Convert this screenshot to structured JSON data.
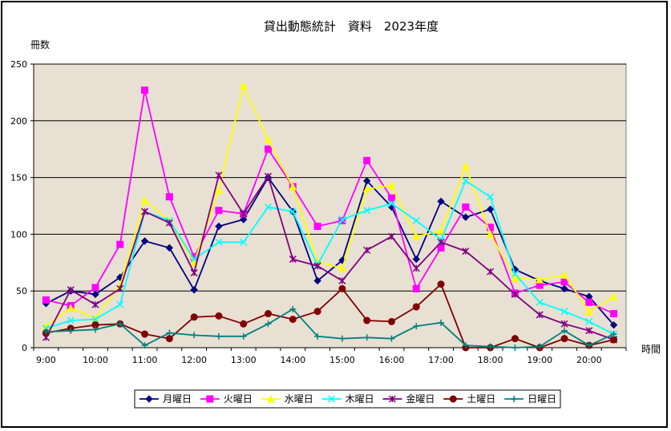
{
  "chart_data": {
    "type": "line",
    "title": "貸出動態統計　資料　2023年度",
    "ylabel": "冊数",
    "xlabel": "時間",
    "ylim": [
      0,
      250
    ],
    "yticks": [
      0,
      50,
      100,
      150,
      200,
      250
    ],
    "x_tick_labels": [
      "9:00",
      "10:00",
      "11:00",
      "12:00",
      "13:00",
      "14:00",
      "15:00",
      "16:00",
      "17:00",
      "18:00",
      "19:00",
      "20:00"
    ],
    "x": [
      "9:00",
      "9:30",
      "10:00",
      "10:30",
      "11:00",
      "11:30",
      "12:00",
      "12:30",
      "13:00",
      "13:30",
      "14:00",
      "14:30",
      "15:00",
      "15:30",
      "16:00",
      "16:30",
      "17:00",
      "17:30",
      "18:00",
      "18:30",
      "19:00",
      "19:30",
      "20:00",
      "20:30"
    ],
    "grid": true,
    "legend_position": "bottom",
    "plot_background": "#e8e0d2",
    "series": [
      {
        "name": "月曜日",
        "color": "#000080",
        "marker": "diamond",
        "values": [
          39,
          50,
          47,
          62,
          94,
          88,
          51,
          107,
          113,
          150,
          120,
          59,
          77,
          147,
          124,
          78,
          129,
          115,
          122,
          69,
          59,
          52,
          45,
          20
        ]
      },
      {
        "name": "火曜日",
        "color": "#ff00ff",
        "marker": "square",
        "values": [
          42,
          37,
          53,
          91,
          227,
          133,
          80,
          121,
          118,
          175,
          142,
          107,
          112,
          165,
          132,
          52,
          88,
          124,
          106,
          48,
          55,
          58,
          40,
          30
        ]
      },
      {
        "name": "水曜日",
        "color": "#ffff00",
        "marker": "triangle",
        "values": [
          19,
          35,
          26,
          55,
          130,
          112,
          75,
          139,
          231,
          183,
          142,
          76,
          70,
          140,
          143,
          98,
          103,
          160,
          100,
          61,
          60,
          64,
          32,
          45
        ]
      },
      {
        "name": "木曜日",
        "color": "#00ffff",
        "marker": "x",
        "values": [
          17,
          24,
          25,
          38,
          120,
          112,
          78,
          93,
          93,
          124,
          120,
          73,
          113,
          121,
          127,
          112,
          95,
          147,
          133,
          65,
          40,
          32,
          23,
          12
        ]
      },
      {
        "name": "金曜日",
        "color": "#800080",
        "marker": "star",
        "values": [
          9,
          51,
          38,
          52,
          120,
          110,
          66,
          152,
          118,
          151,
          78,
          72,
          59,
          86,
          98,
          70,
          93,
          85,
          67,
          47,
          29,
          21,
          15,
          7
        ]
      },
      {
        "name": "土曜日",
        "color": "#800000",
        "marker": "circle",
        "values": [
          13,
          17,
          20,
          21,
          12,
          8,
          27,
          28,
          21,
          30,
          25,
          32,
          52,
          24,
          23,
          36,
          56,
          0,
          0,
          8,
          0,
          8,
          2,
          7
        ]
      },
      {
        "name": "日曜日",
        "color": "#008080",
        "marker": "plus",
        "values": [
          14,
          15,
          16,
          21,
          2,
          13,
          11,
          10,
          10,
          21,
          34,
          10,
          8,
          9,
          8,
          19,
          22,
          2,
          1,
          0,
          1,
          15,
          2,
          12
        ]
      }
    ]
  }
}
